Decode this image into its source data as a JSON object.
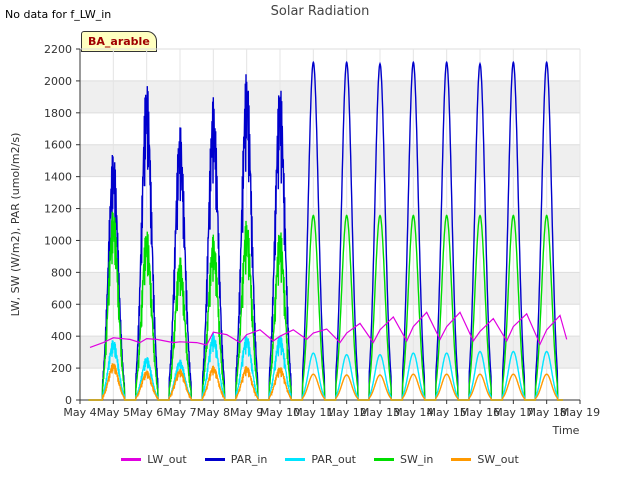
{
  "header": {
    "no_data_text": "No data for f_LW_in",
    "badge": "BA_arable"
  },
  "chart_data": {
    "type": "line",
    "title": "Solar Radiation",
    "xlabel": "Time",
    "ylabel": "LW, SW (W/m2), PAR (umol/m2/s)",
    "xlim": [
      4,
      19
    ],
    "ylim": [
      0,
      2200
    ],
    "grid": true,
    "legend_position": "bottom",
    "x_ticks": [
      "May 4",
      "May 5",
      "May 6",
      "May 7",
      "May 8",
      "May 9",
      "May 10",
      "May 11",
      "May 12",
      "May 13",
      "May 14",
      "May 15",
      "May 16",
      "May 17",
      "May 18",
      "May 19"
    ],
    "y_ticks": [
      0,
      200,
      400,
      600,
      800,
      1000,
      1200,
      1400,
      1600,
      1800,
      2000,
      2200
    ],
    "days": [
      5,
      6,
      7,
      8,
      9,
      10,
      11,
      12,
      13,
      14,
      15,
      16,
      17,
      18
    ],
    "series": [
      {
        "name": "LW_out",
        "color": "#e000e0",
        "values": [
          {
            "x": 4.3,
            "y": 330
          },
          {
            "x": 4.7,
            "y": 360
          },
          {
            "x": 5.0,
            "y": 390
          },
          {
            "x": 5.5,
            "y": 380
          },
          {
            "x": 5.8,
            "y": 360
          },
          {
            "x": 6.0,
            "y": 385
          },
          {
            "x": 6.3,
            "y": 380
          },
          {
            "x": 6.8,
            "y": 360
          },
          {
            "x": 7.0,
            "y": 365
          },
          {
            "x": 7.5,
            "y": 360
          },
          {
            "x": 7.8,
            "y": 345
          },
          {
            "x": 8.0,
            "y": 425
          },
          {
            "x": 8.4,
            "y": 410
          },
          {
            "x": 8.8,
            "y": 360
          },
          {
            "x": 9.0,
            "y": 410
          },
          {
            "x": 9.4,
            "y": 440
          },
          {
            "x": 9.8,
            "y": 370
          },
          {
            "x": 10.0,
            "y": 400
          },
          {
            "x": 10.4,
            "y": 440
          },
          {
            "x": 10.8,
            "y": 380
          },
          {
            "x": 11.0,
            "y": 420
          },
          {
            "x": 11.4,
            "y": 445
          },
          {
            "x": 11.8,
            "y": 360
          },
          {
            "x": 12.0,
            "y": 420
          },
          {
            "x": 12.4,
            "y": 480
          },
          {
            "x": 12.8,
            "y": 360
          },
          {
            "x": 13.0,
            "y": 440
          },
          {
            "x": 13.4,
            "y": 520
          },
          {
            "x": 13.8,
            "y": 370
          },
          {
            "x": 14.0,
            "y": 460
          },
          {
            "x": 14.4,
            "y": 550
          },
          {
            "x": 14.8,
            "y": 380
          },
          {
            "x": 15.0,
            "y": 460
          },
          {
            "x": 15.4,
            "y": 550
          },
          {
            "x": 15.8,
            "y": 370
          },
          {
            "x": 16.0,
            "y": 430
          },
          {
            "x": 16.4,
            "y": 510
          },
          {
            "x": 16.8,
            "y": 370
          },
          {
            "x": 17.0,
            "y": 460
          },
          {
            "x": 17.4,
            "y": 540
          },
          {
            "x": 17.8,
            "y": 350
          },
          {
            "x": 18.0,
            "y": 440
          },
          {
            "x": 18.4,
            "y": 530
          },
          {
            "x": 18.6,
            "y": 380
          }
        ]
      },
      {
        "name": "PAR_in",
        "color": "#0000cc",
        "peaks": [
          1600,
          2050,
          1760,
          1940,
          2110,
          2030,
          2160,
          2160,
          2150,
          2160,
          2160,
          2150,
          2160,
          2160
        ]
      },
      {
        "name": "PAR_out",
        "color": "#00e5ff",
        "peaks": [
          390,
          280,
          260,
          430,
          420,
          420,
          300,
          290,
          290,
          300,
          300,
          310,
          310,
          310
        ]
      },
      {
        "name": "SW_in",
        "color": "#00dd00",
        "peaks": [
          1230,
          1100,
          920,
          1060,
          1160,
          1100,
          1180,
          1180,
          1180,
          1180,
          1180,
          1180,
          1180,
          1180
        ]
      },
      {
        "name": "SW_out",
        "color": "#ff9900",
        "peaks": [
          240,
          190,
          200,
          220,
          220,
          215,
          165,
          160,
          160,
          165,
          165,
          165,
          165,
          165
        ]
      }
    ]
  }
}
